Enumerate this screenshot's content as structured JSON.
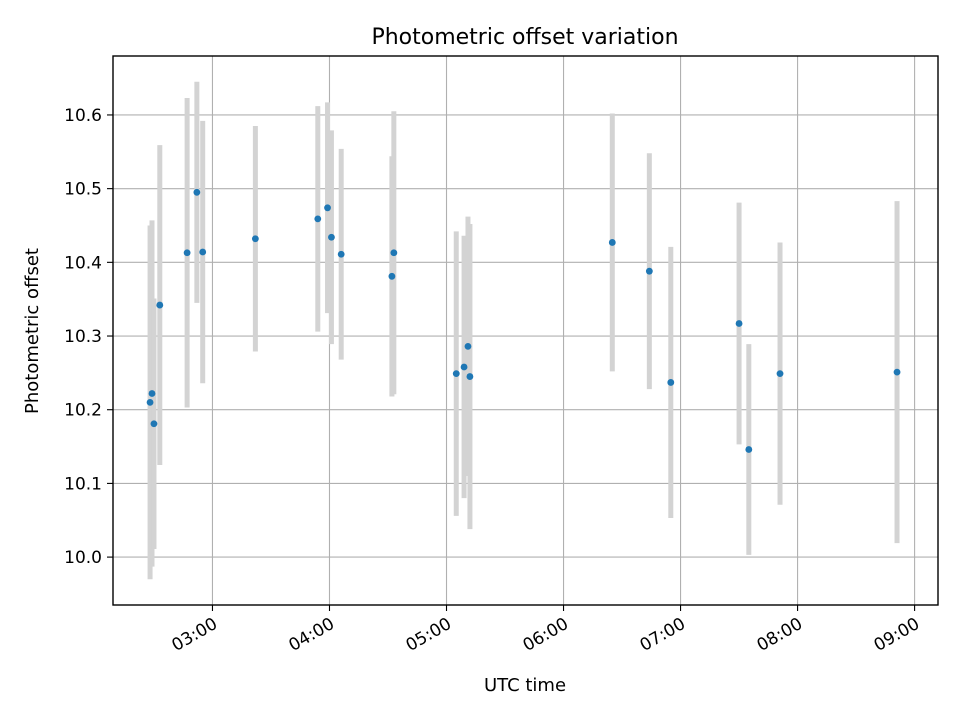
{
  "chart_data": {
    "type": "scatter",
    "title": "Photometric offset variation",
    "xlabel": "UTC time",
    "ylabel": "Photometric offset",
    "x_ticks": [
      "03:00",
      "04:00",
      "05:00",
      "06:00",
      "07:00",
      "08:00",
      "09:00"
    ],
    "y_ticks": [
      "10.0",
      "10.1",
      "10.2",
      "10.3",
      "10.4",
      "10.5",
      "10.6"
    ],
    "xlim": [
      "02:09",
      "09:12"
    ],
    "ylim": [
      9.935,
      10.68
    ],
    "grid": true,
    "marker_color": "#1f77b4",
    "errorbar_color": "#d3d3d3",
    "points": [
      {
        "x": "02:28",
        "y": 10.21,
        "err": 0.24
      },
      {
        "x": "02:29",
        "y": 10.222,
        "err": 0.235
      },
      {
        "x": "02:30",
        "y": 10.181,
        "err": 0.17
      },
      {
        "x": "02:33",
        "y": 10.342,
        "err": 0.217
      },
      {
        "x": "02:47",
        "y": 10.413,
        "err": 0.21
      },
      {
        "x": "02:52",
        "y": 10.495,
        "err": 0.15
      },
      {
        "x": "02:55",
        "y": 10.414,
        "err": 0.178
      },
      {
        "x": "03:22",
        "y": 10.432,
        "err": 0.153
      },
      {
        "x": "03:54",
        "y": 10.459,
        "err": 0.153
      },
      {
        "x": "03:59",
        "y": 10.474,
        "err": 0.143
      },
      {
        "x": "04:01",
        "y": 10.434,
        "err": 0.145
      },
      {
        "x": "04:06",
        "y": 10.411,
        "err": 0.143
      },
      {
        "x": "04:32",
        "y": 10.381,
        "err": 0.163
      },
      {
        "x": "04:33",
        "y": 10.413,
        "err": 0.192
      },
      {
        "x": "05:05",
        "y": 10.249,
        "err": 0.193
      },
      {
        "x": "05:09",
        "y": 10.258,
        "err": 0.178
      },
      {
        "x": "05:11",
        "y": 10.286,
        "err": 0.176
      },
      {
        "x": "05:12",
        "y": 10.245,
        "err": 0.207
      },
      {
        "x": "06:25",
        "y": 10.427,
        "err": 0.175
      },
      {
        "x": "06:44",
        "y": 10.388,
        "err": 0.16
      },
      {
        "x": "06:55",
        "y": 10.237,
        "err": 0.184
      },
      {
        "x": "07:30",
        "y": 10.317,
        "err": 0.164
      },
      {
        "x": "07:35",
        "y": 10.146,
        "err": 0.143
      },
      {
        "x": "07:51",
        "y": 10.249,
        "err": 0.178
      },
      {
        "x": "08:51",
        "y": 10.251,
        "err": 0.232
      }
    ]
  }
}
